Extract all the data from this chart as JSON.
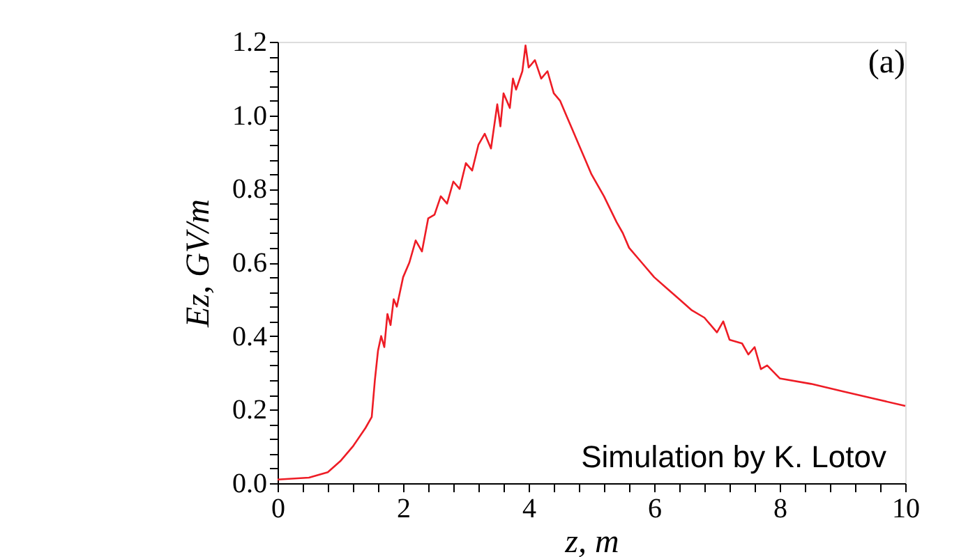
{
  "chart_data": {
    "type": "line",
    "xlabel": "z, m",
    "ylabel": "Ez, GV/m",
    "annotations": [
      "(a)",
      "Simulation by K. Lotov"
    ],
    "xlim": [
      0,
      10
    ],
    "ylim": [
      0,
      1.2
    ],
    "xticks": [
      0,
      {
        "value": 0.4,
        "label": null
      },
      {
        "value": 0.8,
        "label": null
      },
      {
        "value": 1.2,
        "label": null
      },
      {
        "value": 1.6,
        "label": null
      },
      2,
      {
        "value": 2.4,
        "label": null
      },
      {
        "value": 2.8,
        "label": null
      },
      {
        "value": 3.2,
        "label": null
      },
      {
        "value": 3.6,
        "label": null
      },
      4,
      {
        "value": 4.4,
        "label": null
      },
      {
        "value": 4.8,
        "label": null
      },
      {
        "value": 5.2,
        "label": null
      },
      {
        "value": 5.6,
        "label": null
      },
      6,
      {
        "value": 6.4,
        "label": null
      },
      {
        "value": 6.8,
        "label": null
      },
      {
        "value": 7.2,
        "label": null
      },
      {
        "value": 7.6,
        "label": null
      },
      8,
      {
        "value": 8.4,
        "label": null
      },
      {
        "value": 8.8,
        "label": null
      },
      {
        "value": 9.2,
        "label": null
      },
      {
        "value": 9.6,
        "label": null
      },
      10
    ],
    "yticks": [
      {
        "value": 0,
        "label": "0.0"
      },
      {
        "value": 0.04,
        "label": null
      },
      {
        "value": 0.08,
        "label": null
      },
      {
        "value": 0.12,
        "label": null
      },
      {
        "value": 0.16,
        "label": null
      },
      0.2,
      {
        "value": 0.24,
        "label": null
      },
      {
        "value": 0.28,
        "label": null
      },
      {
        "value": 0.32,
        "label": null
      },
      {
        "value": 0.36,
        "label": null
      },
      0.4,
      {
        "value": 0.44,
        "label": null
      },
      {
        "value": 0.48,
        "label": null
      },
      {
        "value": 0.52,
        "label": null
      },
      {
        "value": 0.56,
        "label": null
      },
      0.6,
      {
        "value": 0.64,
        "label": null
      },
      {
        "value": 0.68,
        "label": null
      },
      {
        "value": 0.72,
        "label": null
      },
      {
        "value": 0.76,
        "label": null
      },
      0.8,
      {
        "value": 0.84,
        "label": null
      },
      {
        "value": 0.88,
        "label": null
      },
      {
        "value": 0.92,
        "label": null
      },
      {
        "value": 0.96,
        "label": null
      },
      {
        "value": 1,
        "label": "1.0"
      },
      {
        "value": 1.04,
        "label": null
      },
      {
        "value": 1.08,
        "label": null
      },
      {
        "value": 1.12,
        "label": null
      },
      {
        "value": 1.16,
        "label": null
      },
      1.2
    ],
    "grid": false,
    "series": [
      {
        "color": "#ee1c25",
        "x": [
          0,
          0.5,
          0.8,
          1.0,
          1.2,
          1.4,
          1.5,
          1.55,
          1.6,
          1.65,
          1.7,
          1.75,
          1.8,
          1.85,
          1.9,
          2.0,
          2.1,
          2.2,
          2.3,
          2.4,
          2.5,
          2.6,
          2.7,
          2.8,
          2.9,
          3.0,
          3.1,
          3.2,
          3.3,
          3.4,
          3.5,
          3.55,
          3.6,
          3.7,
          3.75,
          3.8,
          3.9,
          3.95,
          4.0,
          4.1,
          4.2,
          4.3,
          4.4,
          4.5,
          4.6,
          4.7,
          4.8,
          4.9,
          5.0,
          5.2,
          5.4,
          5.5,
          5.6,
          5.8,
          6.0,
          6.2,
          6.4,
          6.6,
          6.8,
          7.0,
          7.1,
          7.2,
          7.4,
          7.5,
          7.6,
          7.7,
          7.8,
          8.0,
          8.5,
          9.0,
          9.5,
          10
        ],
        "values": [
          0.01,
          0.015,
          0.03,
          0.06,
          0.1,
          0.15,
          0.18,
          0.28,
          0.36,
          0.4,
          0.37,
          0.46,
          0.43,
          0.5,
          0.48,
          0.56,
          0.6,
          0.66,
          0.63,
          0.72,
          0.73,
          0.78,
          0.76,
          0.82,
          0.8,
          0.87,
          0.85,
          0.92,
          0.95,
          0.91,
          1.03,
          0.97,
          1.06,
          1.02,
          1.1,
          1.07,
          1.12,
          1.19,
          1.13,
          1.15,
          1.1,
          1.12,
          1.06,
          1.04,
          1.0,
          0.96,
          0.92,
          0.88,
          0.84,
          0.78,
          0.71,
          0.68,
          0.64,
          0.6,
          0.56,
          0.53,
          0.5,
          0.47,
          0.45,
          0.41,
          0.44,
          0.39,
          0.38,
          0.35,
          0.37,
          0.31,
          0.32,
          0.285,
          0.27,
          0.25,
          0.23,
          0.21
        ]
      }
    ]
  }
}
